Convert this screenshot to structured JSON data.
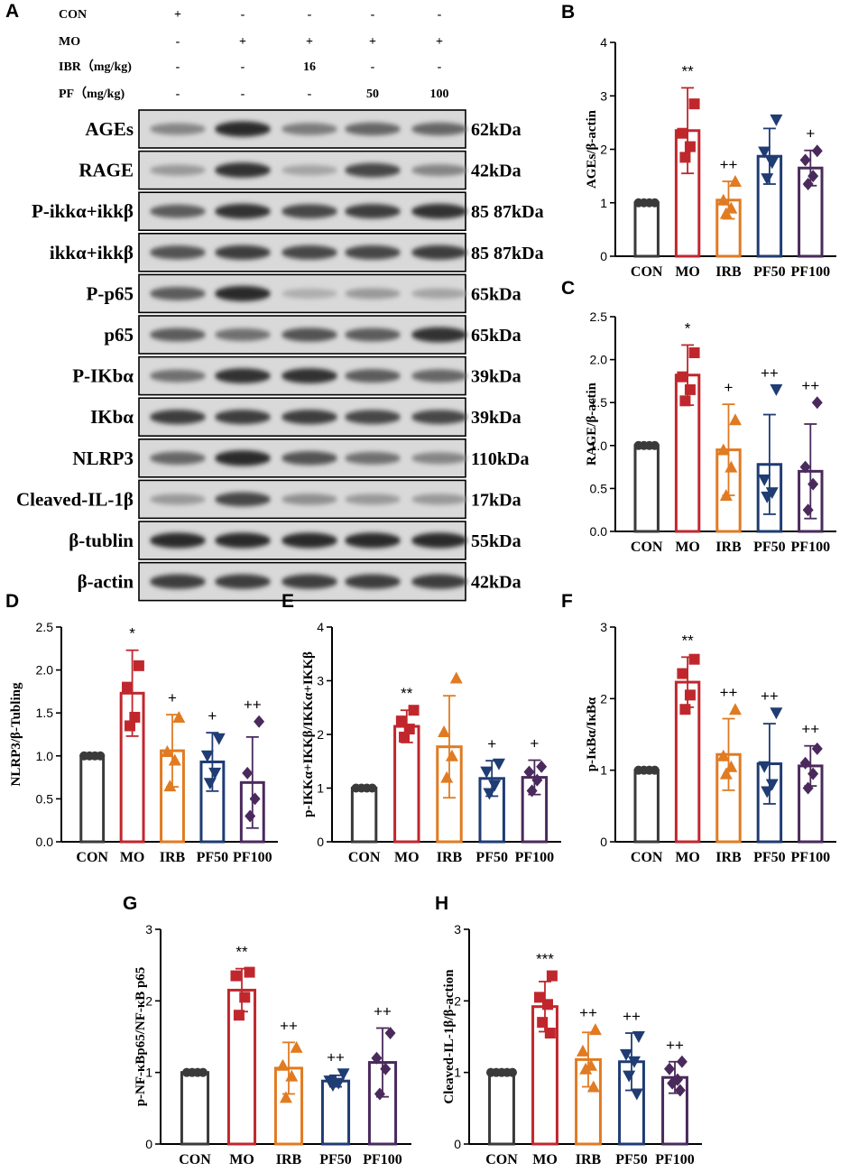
{
  "figure": {
    "panel_a_label": "A",
    "treatments": [
      {
        "label": "CON",
        "values": [
          "+",
          "-",
          "-",
          "-",
          "-"
        ]
      },
      {
        "label": "MO",
        "values": [
          "-",
          "+",
          "+",
          "+",
          "+"
        ]
      },
      {
        "label": "IBR（mg/kg)",
        "values": [
          "-",
          "-",
          "16",
          "-",
          "-"
        ]
      },
      {
        "label": "PF（mg/kg)",
        "values": [
          "-",
          "-",
          "-",
          "50",
          "100"
        ]
      }
    ],
    "blots": [
      {
        "protein": "AGEs",
        "size": "62kDa",
        "intensity": [
          0.45,
          0.9,
          0.5,
          0.6,
          0.6
        ]
      },
      {
        "protein": "RAGE",
        "size": "42kDa",
        "intensity": [
          0.35,
          0.85,
          0.3,
          0.75,
          0.45
        ]
      },
      {
        "protein": "P-ikkα+ikkβ",
        "size": "85 87kDa",
        "intensity": [
          0.65,
          0.85,
          0.75,
          0.8,
          0.85
        ]
      },
      {
        "protein": "ikkα+ikkβ",
        "size": "85 87kDa",
        "intensity": [
          0.7,
          0.8,
          0.75,
          0.75,
          0.8
        ]
      },
      {
        "protein": "P-p65",
        "size": "65kDa",
        "intensity": [
          0.65,
          0.9,
          0.25,
          0.35,
          0.3
        ]
      },
      {
        "protein": "p65",
        "size": "65kDa",
        "intensity": [
          0.65,
          0.55,
          0.7,
          0.65,
          0.85
        ]
      },
      {
        "protein": "P-IKbα",
        "size": "39kDa",
        "intensity": [
          0.55,
          0.85,
          0.85,
          0.65,
          0.6
        ]
      },
      {
        "protein": "IKbα",
        "size": "39kDa",
        "intensity": [
          0.8,
          0.8,
          0.8,
          0.75,
          0.75
        ]
      },
      {
        "protein": "NLRP3",
        "size": "110kDa",
        "intensity": [
          0.6,
          0.9,
          0.7,
          0.55,
          0.45
        ]
      },
      {
        "protein": "Cleaved-IL-1β",
        "size": "17kDa",
        "intensity": [
          0.35,
          0.75,
          0.4,
          0.35,
          0.35
        ]
      },
      {
        "protein": "β-tublin",
        "size": "55kDa",
        "intensity": [
          0.9,
          0.9,
          0.9,
          0.9,
          0.9
        ]
      },
      {
        "protein": "β-actin",
        "size": "42kDa",
        "intensity": [
          0.8,
          0.8,
          0.8,
          0.8,
          0.8
        ]
      }
    ],
    "colors": {
      "CON": "#3a3a3a",
      "MO": "#c0272d",
      "IRB": "#e07b22",
      "PF50": "#1f3c73",
      "PF100": "#4a2a5c"
    }
  },
  "chart_data": [
    {
      "panel": "B",
      "type": "bar",
      "categories": [
        "CON",
        "MO",
        "IRB",
        "PF50",
        "PF100"
      ],
      "values": [
        1.0,
        2.35,
        1.05,
        1.87,
        1.65
      ],
      "errors": [
        0.0,
        0.8,
        0.35,
        0.52,
        0.33
      ],
      "points": [
        [
          1,
          1,
          1,
          1
        ],
        [
          2.85,
          2.3,
          2.05,
          1.85
        ],
        [
          1.4,
          1.05,
          0.9,
          0.8
        ],
        [
          2.55,
          1.95,
          1.75,
          1.45
        ],
        [
          1.97,
          1.8,
          1.5,
          1.35
        ]
      ],
      "markers": [
        "circle",
        "square",
        "triangle-up",
        "triangle-down",
        "diamond"
      ],
      "significance": [
        "",
        "**",
        "++",
        "",
        "+"
      ],
      "ylabel": "AGEs/β-actin",
      "ylim": [
        0,
        4
      ],
      "yticks": [
        0,
        1,
        2,
        3,
        4
      ],
      "ytick_labels": [
        "0",
        "1",
        "2",
        "3",
        "4"
      ]
    },
    {
      "panel": "C",
      "type": "bar",
      "categories": [
        "CON",
        "MO",
        "IRB",
        "PF50",
        "PF100"
      ],
      "values": [
        1.0,
        1.82,
        0.95,
        0.78,
        0.7
      ],
      "errors": [
        0.0,
        0.35,
        0.53,
        0.58,
        0.55
      ],
      "points": [
        [
          1,
          1,
          1,
          1
        ],
        [
          2.08,
          1.8,
          1.65,
          1.52
        ],
        [
          1.3,
          0.95,
          0.75,
          0.42
        ],
        [
          1.65,
          0.6,
          0.45,
          0.4
        ],
        [
          1.5,
          0.75,
          0.55,
          0.25
        ]
      ],
      "markers": [
        "circle",
        "square",
        "triangle-up",
        "triangle-down",
        "diamond"
      ],
      "significance": [
        "",
        "*",
        "+",
        "++",
        "++"
      ],
      "ylabel": "RAGE/β-actin",
      "ylim": [
        0,
        2.5
      ],
      "yticks": [
        0,
        0.5,
        1,
        1.5,
        2,
        2.5
      ],
      "ytick_labels": [
        "0.0",
        "0.5",
        "1.0",
        "1.5",
        "2.0",
        "2.5"
      ]
    },
    {
      "panel": "D",
      "type": "bar",
      "categories": [
        "CON",
        "MO",
        "IRB",
        "PF50",
        "PF100"
      ],
      "values": [
        1.0,
        1.73,
        1.06,
        0.93,
        0.69
      ],
      "errors": [
        0.0,
        0.5,
        0.42,
        0.34,
        0.53
      ],
      "points": [
        [
          1,
          1,
          1,
          1
        ],
        [
          2.05,
          1.8,
          1.45,
          1.35
        ],
        [
          1.45,
          1.05,
          0.95,
          0.65
        ],
        [
          1.2,
          1.0,
          0.8,
          0.68
        ],
        [
          1.4,
          0.8,
          0.5,
          0.3
        ]
      ],
      "markers": [
        "circle",
        "square",
        "triangle-up",
        "triangle-down",
        "diamond"
      ],
      "significance": [
        "",
        "*",
        "+",
        "+",
        "++"
      ],
      "ylabel": "NLRP3/β-Tubling",
      "ylim": [
        0,
        2.5
      ],
      "yticks": [
        0,
        0.5,
        1,
        1.5,
        2,
        2.5
      ],
      "ytick_labels": [
        "0.0",
        "0.5",
        "1.0",
        "1.5",
        "2.0",
        "2.5"
      ]
    },
    {
      "panel": "E",
      "type": "bar",
      "categories": [
        "CON",
        "MO",
        "IRB",
        "PF50",
        "PF100"
      ],
      "values": [
        1.0,
        2.15,
        1.77,
        1.18,
        1.2
      ],
      "errors": [
        0.0,
        0.3,
        0.95,
        0.33,
        0.32
      ],
      "points": [
        [
          1,
          1,
          1,
          1
        ],
        [
          2.45,
          2.25,
          2.1,
          1.95
        ],
        [
          3.05,
          2.05,
          1.6,
          1.2
        ],
        [
          1.45,
          1.3,
          1.05,
          0.9
        ],
        [
          1.4,
          1.3,
          1.15,
          0.95
        ]
      ],
      "markers": [
        "circle",
        "square",
        "triangle-up",
        "triangle-down",
        "diamond"
      ],
      "significance": [
        "",
        "**",
        "",
        "+",
        "+"
      ],
      "ylabel": "p-IKKα+IKKβ/IKKα+IKKβ",
      "ylim": [
        0,
        4
      ],
      "yticks": [
        0,
        1,
        2,
        3,
        4
      ],
      "ytick_labels": [
        "0",
        "1",
        "2",
        "3",
        "4"
      ]
    },
    {
      "panel": "F",
      "type": "bar",
      "categories": [
        "CON",
        "MO",
        "IRB",
        "PF50",
        "PF100"
      ],
      "values": [
        1.0,
        2.23,
        1.22,
        1.09,
        1.06
      ],
      "errors": [
        0.0,
        0.35,
        0.5,
        0.56,
        0.28
      ],
      "points": [
        [
          1,
          1,
          1,
          1
        ],
        [
          2.55,
          2.35,
          2.05,
          1.85
        ],
        [
          1.85,
          1.2,
          1.05,
          0.95
        ],
        [
          1.8,
          1.05,
          0.8,
          0.7
        ],
        [
          1.3,
          1.1,
          0.95,
          0.75
        ]
      ],
      "markers": [
        "circle",
        "square",
        "triangle-up",
        "triangle-down",
        "diamond"
      ],
      "significance": [
        "",
        "**",
        "++",
        "++",
        "++"
      ],
      "ylabel": "p-IκBα/IκBα",
      "ylim": [
        0,
        3
      ],
      "yticks": [
        0,
        1,
        2,
        3
      ],
      "ytick_labels": [
        "0",
        "1",
        "2",
        "3"
      ]
    },
    {
      "panel": "G",
      "type": "bar",
      "categories": [
        "CON",
        "MO",
        "IRB",
        "PF50",
        "PF100"
      ],
      "values": [
        1.0,
        2.15,
        1.06,
        0.88,
        1.14
      ],
      "errors": [
        0.0,
        0.3,
        0.36,
        0.08,
        0.48
      ],
      "points": [
        [
          1,
          1,
          1,
          1
        ],
        [
          2.4,
          2.35,
          2.05,
          1.8
        ],
        [
          1.35,
          1.1,
          0.95,
          0.65
        ],
        [
          0.98,
          0.88,
          0.85,
          0.82
        ],
        [
          1.55,
          1.2,
          1.05,
          0.7
        ]
      ],
      "markers": [
        "circle",
        "square",
        "triangle-up",
        "triangle-down",
        "diamond"
      ],
      "significance": [
        "",
        "**",
        "++",
        "++",
        "++"
      ],
      "ylabel": "p-NF-κBp65/NF-κB p65",
      "ylim": [
        0,
        3
      ],
      "yticks": [
        0,
        1,
        2,
        3
      ],
      "ytick_labels": [
        "0",
        "1",
        "2",
        "3"
      ]
    },
    {
      "panel": "H",
      "type": "bar",
      "categories": [
        "CON",
        "MO",
        "IRB",
        "PF50",
        "PF100"
      ],
      "values": [
        1.0,
        1.92,
        1.18,
        1.15,
        0.93
      ],
      "errors": [
        0.0,
        0.35,
        0.38,
        0.4,
        0.22
      ],
      "points": [
        [
          1,
          1,
          1,
          1,
          1
        ],
        [
          2.35,
          2.05,
          1.95,
          1.7,
          1.55
        ],
        [
          1.6,
          1.3,
          1.1,
          1.05,
          0.8
        ],
        [
          1.5,
          1.25,
          1.15,
          0.95,
          0.7
        ],
        [
          1.15,
          1.05,
          0.9,
          0.85,
          0.75
        ]
      ],
      "markers": [
        "circle",
        "square",
        "triangle-up",
        "triangle-down",
        "diamond"
      ],
      "significance": [
        "",
        "***",
        "++",
        "++",
        "++"
      ],
      "ylabel": "Cleaved-IL-1β/β-action",
      "ylim": [
        0,
        3
      ],
      "yticks": [
        0,
        1,
        2,
        3
      ],
      "ytick_labels": [
        "0",
        "1",
        "2",
        "3"
      ]
    }
  ]
}
